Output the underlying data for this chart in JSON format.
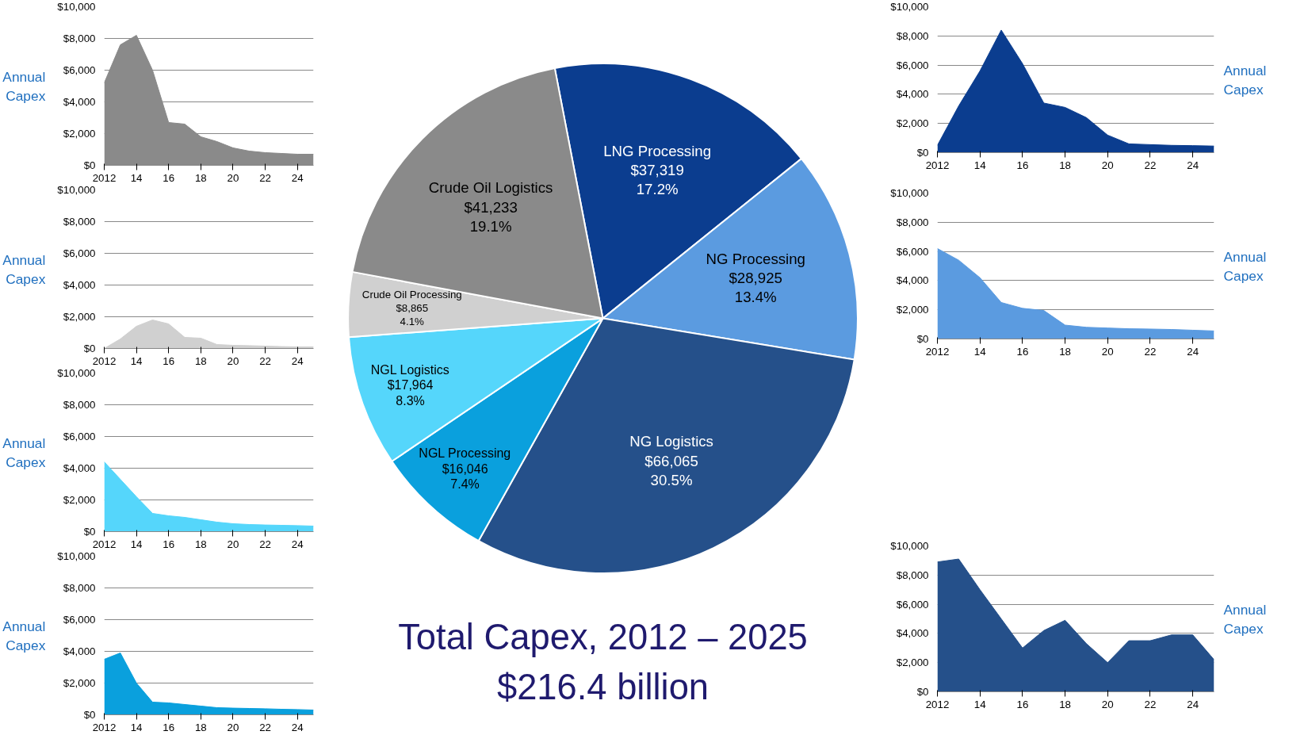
{
  "chart_data": [
    {
      "type": "pie",
      "title": "Total Capex, 2012 – 2025",
      "subtitle": "$216.4 billion",
      "categories": [
        "LNG Processing",
        "NG Processing",
        "NG Logistics",
        "NGL Processing",
        "NGL Logistics",
        "Crude Oil Processing",
        "Crude Oil Logistics"
      ],
      "values": [
        37319,
        28925,
        66065,
        16046,
        17964,
        8865,
        41233
      ],
      "colors": [
        "#0b3d8f",
        "#5b9be0",
        "#25508a",
        "#0aa0dd",
        "#55d6fb",
        "#d0d0d0",
        "#8a8a8a"
      ],
      "value_labels": [
        "$37,319\n17.2%",
        "$28,925\n13.4%",
        "$66,065\n30.5%",
        "$16,046\n7.4%",
        "$17,964\n8.3%",
        "$8,865\n4.1%",
        "$41,233\n19.1%"
      ]
    },
    {
      "type": "area",
      "ylabel": "Annual\nCapex",
      "x": [
        2012,
        2013,
        2014,
        2015,
        2016,
        2017,
        2018,
        2019,
        2020,
        2021,
        2022,
        2023,
        2024,
        2025
      ],
      "values": [
        5200,
        7600,
        8200,
        6000,
        2700,
        2600,
        1800,
        1500,
        1100,
        900,
        800,
        750,
        700,
        700
      ],
      "color": "#8a8a8a",
      "xlim": [
        2012,
        2025
      ],
      "ylim": [
        0,
        10000
      ],
      "grid": "y",
      "xticks": [
        2012,
        {
          "value": 2014,
          "label": "14"
        },
        {
          "value": 2016,
          "label": "16"
        },
        {
          "value": 2018,
          "label": "18"
        },
        {
          "value": 2020,
          "label": "20"
        },
        {
          "value": 2022,
          "label": "22"
        },
        {
          "value": 2024,
          "label": "24"
        }
      ],
      "yticks": [
        {
          "value": 0,
          "label": "$0"
        },
        {
          "value": 2000,
          "label": "$2,000"
        },
        {
          "value": 4000,
          "label": "$4,000"
        },
        {
          "value": 6000,
          "label": "$6,000"
        },
        {
          "value": 8000,
          "label": "$8,000"
        },
        {
          "value": 10000,
          "label": "$10,000"
        }
      ]
    },
    {
      "type": "area",
      "ylabel": "Annual\nCapex",
      "x": [
        2012,
        2013,
        2014,
        2015,
        2016,
        2017,
        2018,
        2019,
        2020,
        2021,
        2022,
        2023,
        2024,
        2025
      ],
      "values": [
        0,
        600,
        1400,
        1800,
        1550,
        700,
        650,
        250,
        200,
        180,
        150,
        120,
        100,
        100
      ],
      "color": "#d0d0d0",
      "xlim": [
        2012,
        2025
      ],
      "ylim": [
        0,
        10000
      ],
      "grid": "y",
      "xticks": [
        2012,
        {
          "value": 2014,
          "label": "14"
        },
        {
          "value": 2016,
          "label": "16"
        },
        {
          "value": 2018,
          "label": "18"
        },
        {
          "value": 2020,
          "label": "20"
        },
        {
          "value": 2022,
          "label": "22"
        },
        {
          "value": 2024,
          "label": "24"
        }
      ],
      "yticks": [
        {
          "value": 0,
          "label": "$0"
        },
        {
          "value": 2000,
          "label": "$2,000"
        },
        {
          "value": 4000,
          "label": "$4,000"
        },
        {
          "value": 6000,
          "label": "$6,000"
        },
        {
          "value": 8000,
          "label": "$8,000"
        },
        {
          "value": 10000,
          "label": "$10,000"
        }
      ]
    },
    {
      "type": "area",
      "ylabel": "Annual\nCapex",
      "x": [
        2012,
        2013,
        2014,
        2015,
        2016,
        2017,
        2018,
        2019,
        2020,
        2021,
        2022,
        2023,
        2024,
        2025
      ],
      "values": [
        4400,
        3300,
        2200,
        1150,
        1000,
        900,
        750,
        600,
        500,
        450,
        420,
        400,
        380,
        350
      ],
      "color": "#55d6fb",
      "xlim": [
        2012,
        2025
      ],
      "ylim": [
        0,
        10000
      ],
      "grid": "y",
      "xticks": [
        2012,
        {
          "value": 2014,
          "label": "14"
        },
        {
          "value": 2016,
          "label": "16"
        },
        {
          "value": 2018,
          "label": "18"
        },
        {
          "value": 2020,
          "label": "20"
        },
        {
          "value": 2022,
          "label": "22"
        },
        {
          "value": 2024,
          "label": "24"
        }
      ],
      "yticks": [
        {
          "value": 0,
          "label": "$0"
        },
        {
          "value": 2000,
          "label": "$2,000"
        },
        {
          "value": 4000,
          "label": "$4,000"
        },
        {
          "value": 6000,
          "label": "$6,000"
        },
        {
          "value": 8000,
          "label": "$8,000"
        },
        {
          "value": 10000,
          "label": "$10,000"
        }
      ]
    },
    {
      "type": "area",
      "ylabel": "Annual\nCapex",
      "x": [
        2012,
        2013,
        2014,
        2015,
        2016,
        2017,
        2018,
        2019,
        2020,
        2021,
        2022,
        2023,
        2024,
        2025
      ],
      "values": [
        3500,
        3900,
        2000,
        800,
        750,
        650,
        550,
        450,
        420,
        400,
        380,
        350,
        330,
        300
      ],
      "color": "#0aa0dd",
      "xlim": [
        2012,
        2025
      ],
      "ylim": [
        0,
        10000
      ],
      "grid": "y",
      "xticks": [
        2012,
        {
          "value": 2014,
          "label": "14"
        },
        {
          "value": 2016,
          "label": "16"
        },
        {
          "value": 2018,
          "label": "18"
        },
        {
          "value": 2020,
          "label": "20"
        },
        {
          "value": 2022,
          "label": "22"
        },
        {
          "value": 2024,
          "label": "24"
        }
      ],
      "yticks": [
        {
          "value": 0,
          "label": "$0"
        },
        {
          "value": 2000,
          "label": "$2,000"
        },
        {
          "value": 4000,
          "label": "$4,000"
        },
        {
          "value": 6000,
          "label": "$6,000"
        },
        {
          "value": 8000,
          "label": "$8,000"
        },
        {
          "value": 10000,
          "label": "$10,000"
        }
      ]
    },
    {
      "type": "area",
      "ylabel": "Annual\nCapex",
      "x": [
        2012,
        2013,
        2014,
        2015,
        2016,
        2017,
        2018,
        2019,
        2020,
        2021,
        2022,
        2023,
        2024,
        2025
      ],
      "values": [
        500,
        3200,
        5600,
        8400,
        6100,
        3400,
        3100,
        2400,
        1200,
        600,
        550,
        500,
        480,
        450
      ],
      "color": "#0b3d8f",
      "xlim": [
        2012,
        2025
      ],
      "ylim": [
        0,
        10000
      ],
      "grid": "y",
      "xticks": [
        2012,
        {
          "value": 2014,
          "label": "14"
        },
        {
          "value": 2016,
          "label": "16"
        },
        {
          "value": 2018,
          "label": "18"
        },
        {
          "value": 2020,
          "label": "20"
        },
        {
          "value": 2022,
          "label": "22"
        },
        {
          "value": 2024,
          "label": "24"
        }
      ],
      "yticks": [
        {
          "value": 0,
          "label": "$0"
        },
        {
          "value": 2000,
          "label": "$2,000"
        },
        {
          "value": 4000,
          "label": "$4,000"
        },
        {
          "value": 6000,
          "label": "$6,000"
        },
        {
          "value": 8000,
          "label": "$8,000"
        },
        {
          "value": 10000,
          "label": "$10,000"
        }
      ]
    },
    {
      "type": "area",
      "ylabel": "Annual\nCapex",
      "x": [
        2012,
        2013,
        2014,
        2015,
        2016,
        2017,
        2018,
        2019,
        2020,
        2021,
        2022,
        2023,
        2024,
        2025
      ],
      "values": [
        6200,
        5400,
        4200,
        2500,
        2100,
        1950,
        950,
        800,
        750,
        700,
        680,
        650,
        600,
        550
      ],
      "color": "#5b9be0",
      "xlim": [
        2012,
        2025
      ],
      "ylim": [
        0,
        10000
      ],
      "grid": "y",
      "xticks": [
        2012,
        {
          "value": 2014,
          "label": "14"
        },
        {
          "value": 2016,
          "label": "16"
        },
        {
          "value": 2018,
          "label": "18"
        },
        {
          "value": 2020,
          "label": "20"
        },
        {
          "value": 2022,
          "label": "22"
        },
        {
          "value": 2024,
          "label": "24"
        }
      ],
      "yticks": [
        {
          "value": 0,
          "label": "$0"
        },
        {
          "value": 2000,
          "label": "$2,000"
        },
        {
          "value": 4000,
          "label": "$4,000"
        },
        {
          "value": 6000,
          "label": "$6,000"
        },
        {
          "value": 8000,
          "label": "$8,000"
        },
        {
          "value": 10000,
          "label": "$10,000"
        }
      ]
    },
    {
      "type": "area",
      "ylabel": "Annual\nCapex",
      "x": [
        2012,
        2013,
        2014,
        2015,
        2016,
        2017,
        2018,
        2019,
        2020,
        2021,
        2022,
        2023,
        2024,
        2025
      ],
      "values": [
        8900,
        9100,
        7000,
        5000,
        3000,
        4200,
        4900,
        3300,
        2000,
        3500,
        3500,
        3900,
        3900,
        2200
      ],
      "color": "#25508a",
      "xlim": [
        2012,
        2025
      ],
      "ylim": [
        0,
        10000
      ],
      "grid": "y",
      "xticks": [
        2012,
        {
          "value": 2014,
          "label": "14"
        },
        {
          "value": 2016,
          "label": "16"
        },
        {
          "value": 2018,
          "label": "18"
        },
        {
          "value": 2020,
          "label": "20"
        },
        {
          "value": 2022,
          "label": "22"
        },
        {
          "value": 2024,
          "label": "24"
        }
      ],
      "yticks": [
        {
          "value": 0,
          "label": "$0"
        },
        {
          "value": 2000,
          "label": "$2,000"
        },
        {
          "value": 4000,
          "label": "$4,000"
        },
        {
          "value": 6000,
          "label": "$6,000"
        },
        {
          "value": 8000,
          "label": "$8,000"
        },
        {
          "value": 10000,
          "label": "$10,000"
        }
      ]
    }
  ]
}
